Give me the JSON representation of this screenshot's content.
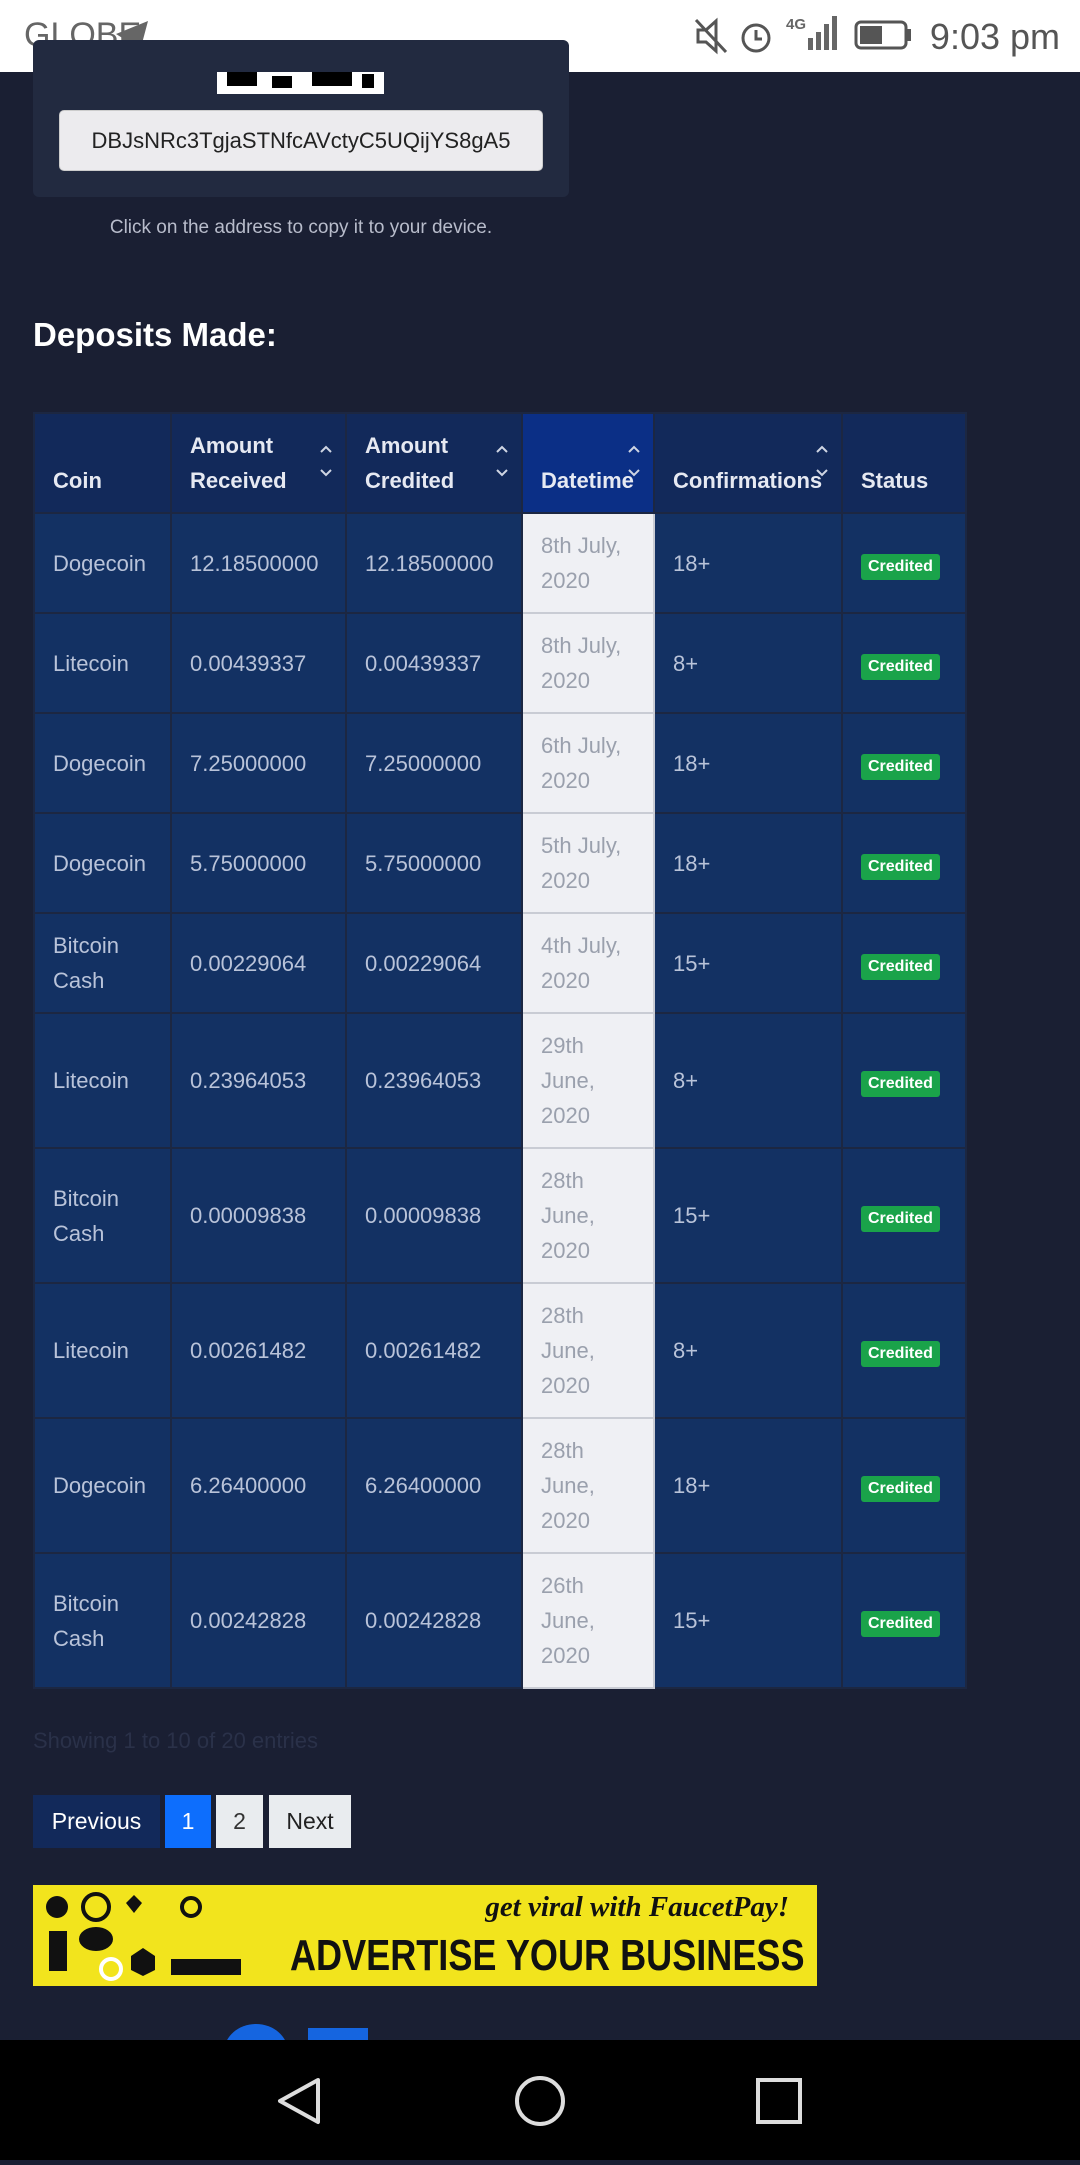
{
  "status_bar": {
    "carrier": "GLOBE",
    "network": "4G",
    "time": "9:03 pm"
  },
  "wallet": {
    "address": "DBJsNRc3TgjaSTNfcAVctyC5UQijYS8gA5",
    "hint": "Click on the address to copy it to your device."
  },
  "deposits": {
    "heading": "Deposits Made:",
    "table": {
      "headers": [
        "Coin",
        "Amount Received",
        "Amount Credited",
        "Datetime",
        "Confirmations",
        "Status"
      ],
      "rows": [
        [
          "Dogecoin",
          "12.18500000",
          "12.18500000",
          "8th July, 2020",
          "18+",
          "Credited"
        ],
        [
          "Litecoin",
          "0.00439337",
          "0.00439337",
          "8th July, 2020",
          "8+",
          "Credited"
        ],
        [
          "Dogecoin",
          "7.25000000",
          "7.25000000",
          "6th July, 2020",
          "18+",
          "Credited"
        ],
        [
          "Dogecoin",
          "5.75000000",
          "5.75000000",
          "5th July, 2020",
          "18+",
          "Credited"
        ],
        [
          "Bitcoin Cash",
          "0.00229064",
          "0.00229064",
          "4th July, 2020",
          "15+",
          "Credited"
        ],
        [
          "Litecoin",
          "0.23964053",
          "0.23964053",
          "29th June, 2020",
          "8+",
          "Credited"
        ],
        [
          "Bitcoin Cash",
          "0.00009838",
          "0.00009838",
          "28th June, 2020",
          "15+",
          "Credited"
        ],
        [
          "Litecoin",
          "0.00261482",
          "0.00261482",
          "28th June, 2020",
          "8+",
          "Credited"
        ],
        [
          "Dogecoin",
          "6.26400000",
          "6.26400000",
          "28th June, 2020",
          "18+",
          "Credited"
        ],
        [
          "Bitcoin Cash",
          "0.00242828",
          "0.00242828",
          "26th June, 2020",
          "15+",
          "Credited"
        ]
      ]
    },
    "info": "Showing 1 to 10 of 20 entries",
    "pagination": [
      "Previous",
      "1",
      "2",
      "Next"
    ]
  },
  "ad": {
    "tagline": "get viral with FaucetPay!",
    "headline": "ADVERTISE YOUR BUSINESS"
  }
}
